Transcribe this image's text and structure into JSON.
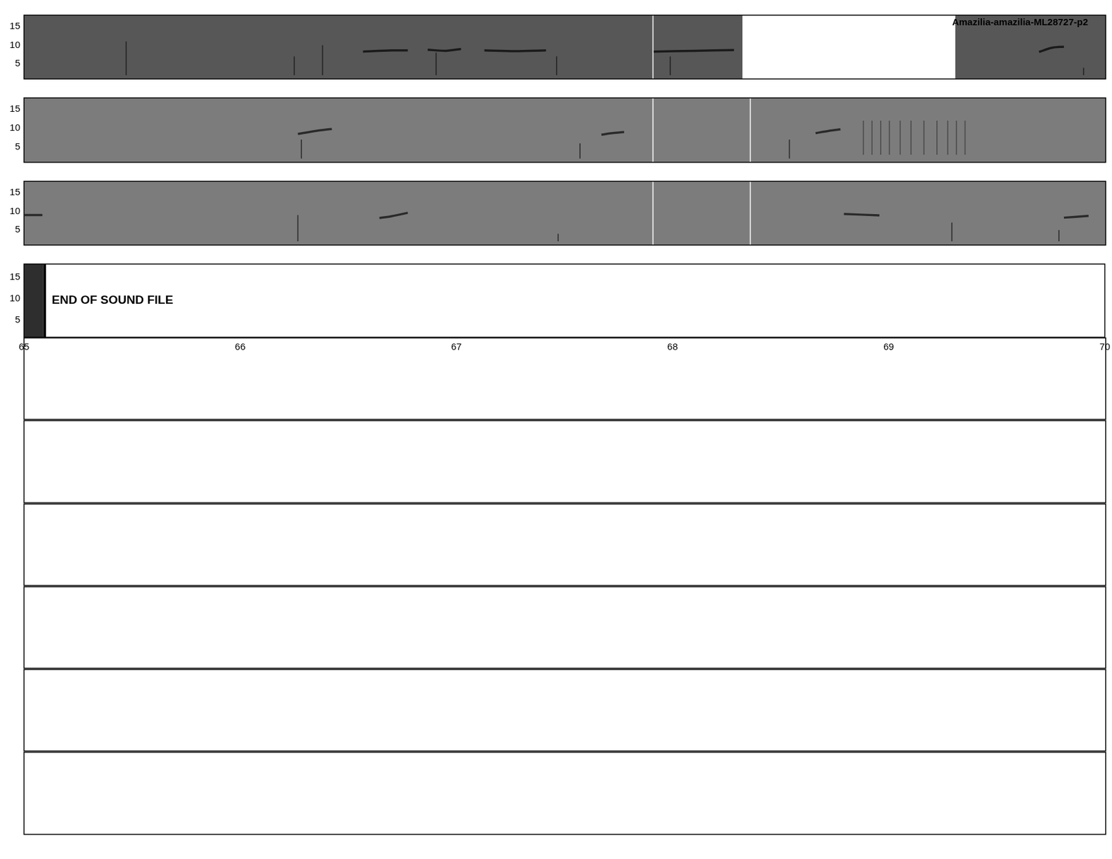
{
  "chart_data": [
    {
      "type": "line",
      "title": "Amazilia-amazilia-ML28727-p2",
      "xlim": [
        65,
        70
      ],
      "ylim": [
        1,
        18
      ],
      "yticks": [
        5,
        10,
        15
      ],
      "tick_labels": "y",
      "grid": false,
      "blank_spans": [
        [
          68.321,
          69.305
        ]
      ],
      "dividers": [
        67.905
      ],
      "series": [
        {
          "color": "#1a1a1a",
          "line_style": "bold",
          "x": [
            66.567,
            66.7,
            66.774,
            null,
            66.866,
            66.95,
            67.02,
            null,
            67.128,
            67.27,
            67.413,
            null,
            67.911,
            68.1,
            68.282,
            null,
            69.692,
            69.75,
            69.807
          ],
          "values": [
            8.3,
            8.6,
            8.6,
            null,
            8.8,
            8.5,
            9.0,
            null,
            8.6,
            8.4,
            8.6,
            null,
            8.3,
            8.5,
            8.7,
            null,
            8.2,
            9.3,
            9.6
          ]
        },
        {
          "color": "#222222",
          "line_style": "solid",
          "x": [
            65.472,
            65.472,
            null,
            66.249,
            66.249,
            null,
            66.38,
            66.38,
            null,
            66.905,
            66.905,
            null,
            67.462,
            67.462,
            null,
            67.987,
            67.987,
            null,
            69.898,
            69.898
          ],
          "values": [
            2,
            11,
            null,
            2,
            7,
            null,
            2,
            10,
            null,
            2,
            8,
            null,
            2,
            7,
            null,
            2,
            7,
            null,
            2,
            4
          ]
        }
      ]
    },
    {
      "type": "line",
      "xlim": [
        65,
        70
      ],
      "ylim": [
        1,
        18
      ],
      "yticks": [
        5,
        10,
        15
      ],
      "tick_labels": "y",
      "grid": false,
      "dividers": [
        67.905,
        68.357
      ],
      "series": [
        {
          "color": "#2a2a2a",
          "line_style": "bold",
          "x": [
            66.266,
            66.35,
            66.423,
            null,
            67.669,
            67.72,
            67.774,
            null,
            68.659,
            68.72,
            68.774
          ],
          "values": [
            8.5,
            9.3,
            9.8,
            null,
            8.3,
            8.7,
            9.0,
            null,
            8.7,
            9.3,
            9.7
          ]
        },
        {
          "color": "#2a2a2a",
          "line_style": "solid",
          "x": [
            66.282,
            66.282,
            null,
            67.57,
            67.57,
            null,
            68.538,
            68.538
          ],
          "values": [
            2,
            7,
            null,
            2,
            6,
            null,
            2,
            7
          ]
        },
        {
          "color": "#4a4a4a",
          "line_style": "solid",
          "x": [
            68.88,
            68.88,
            null,
            68.92,
            68.92,
            null,
            68.96,
            68.96,
            null,
            69.0,
            69.0,
            null,
            69.05,
            69.05,
            null,
            69.1,
            69.1,
            null,
            69.16,
            69.16,
            null,
            69.22,
            69.22,
            null,
            69.27,
            69.27,
            null,
            69.31,
            69.31,
            null,
            69.35,
            69.35
          ],
          "values": [
            3,
            12,
            null,
            3,
            12,
            null,
            3,
            12,
            null,
            3,
            12,
            null,
            3,
            12,
            null,
            3,
            12,
            null,
            3,
            12,
            null,
            3,
            12,
            null,
            3,
            12,
            null,
            3,
            12,
            null,
            3,
            12
          ]
        }
      ]
    },
    {
      "type": "line",
      "xlim": [
        65,
        70
      ],
      "ylim": [
        1,
        18
      ],
      "yticks": [
        5,
        10,
        15
      ],
      "tick_labels": "y",
      "grid": false,
      "dividers": [
        67.905,
        68.357
      ],
      "series": [
        {
          "color": "#2a2a2a",
          "line_style": "bold",
          "x": [
            65.003,
            65.085,
            null,
            66.643,
            66.7,
            66.774,
            null,
            68.79,
            68.954,
            null,
            69.807,
            69.921
          ],
          "values": [
            9.0,
            9.0,
            null,
            8.2,
            8.7,
            9.6,
            null,
            9.3,
            8.9,
            null,
            8.3,
            8.8
          ]
        },
        {
          "color": "#2a2a2a",
          "line_style": "solid",
          "x": [
            66.266,
            66.266,
            null,
            67.469,
            67.469,
            null,
            69.289,
            69.289,
            null,
            69.784,
            69.784
          ],
          "values": [
            2,
            9,
            null,
            2,
            4,
            null,
            2,
            7,
            null,
            2,
            5
          ]
        }
      ]
    },
    {
      "type": "line",
      "annotation": "END OF SOUND FILE",
      "xlim": [
        65,
        70
      ],
      "ylim": [
        1,
        18
      ],
      "xticks": [
        65,
        66,
        67,
        68,
        69,
        70
      ],
      "yticks": [
        5,
        10,
        15
      ],
      "grid": false,
      "dark_spans": [
        [
          65,
          65.09
        ]
      ],
      "series": []
    },
    {
      "type": "line",
      "tick_labels": false,
      "series": []
    },
    {
      "type": "line",
      "tick_labels": false,
      "series": []
    },
    {
      "type": "line",
      "tick_labels": false,
      "series": []
    },
    {
      "type": "line",
      "tick_labels": false,
      "series": []
    },
    {
      "type": "line",
      "tick_labels": false,
      "series": []
    },
    {
      "type": "line",
      "tick_labels": false,
      "series": []
    }
  ]
}
